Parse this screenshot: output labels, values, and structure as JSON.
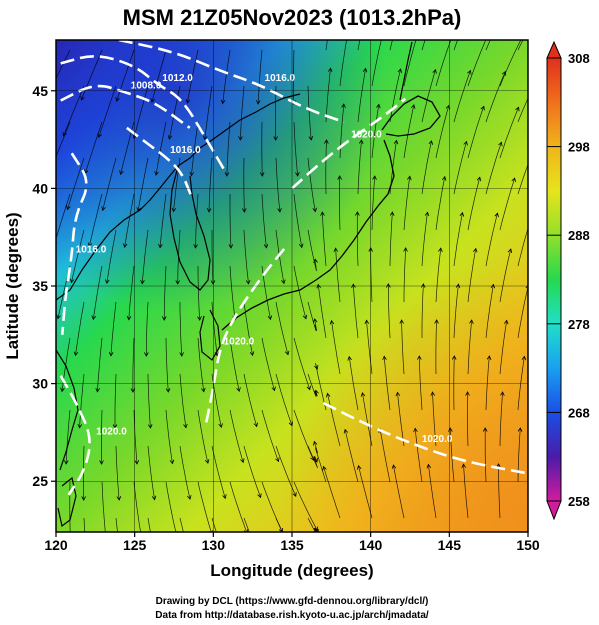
{
  "figure": {
    "title": "MSM 21Z05Nov2023 (1013.2hPa)",
    "credits": [
      "Drawing by DCL (https://www.gfd-dennou.org/library/dcl/)",
      "Data from http://database.rish.kyoto-u.ac.jp/arch/jmadata/"
    ]
  },
  "chart_data": {
    "type": "heatmap",
    "title": "MSM 21Z05Nov2023 (1013.2hPa)",
    "xlabel": "Longitude (degrees)",
    "ylabel": "Latitude  (degrees)",
    "xlim": [
      120,
      150
    ],
    "ylim": [
      22.4,
      47.6
    ],
    "xticks": [
      120,
      125,
      130,
      135,
      140,
      145,
      150
    ],
    "yticks": [
      25,
      30,
      35,
      40,
      45
    ],
    "grid": true,
    "colorbar": {
      "range": [
        258,
        308
      ],
      "ticks": [
        258,
        268,
        278,
        288,
        298,
        308
      ],
      "colors": [
        "#d21c9e",
        "#4a1ca8",
        "#1a4fe6",
        "#1aa0f0",
        "#1fe0c8",
        "#27d84e",
        "#92e02a",
        "#e6e41c",
        "#f0b41c",
        "#f0701c",
        "#e0301c"
      ],
      "extend": "both"
    },
    "contour_labels": [
      "1008.0",
      "1012.0",
      "1016.0",
      "1020.0"
    ],
    "pressure_contours": [
      {
        "value": 1008.0,
        "points": [
          [
            120.3,
            44.5
          ],
          [
            122.5,
            45.4
          ],
          [
            124.5,
            44.9
          ],
          [
            126.3,
            44.4
          ],
          [
            128.5,
            43.1
          ]
        ]
      },
      {
        "value": 1012.0,
        "points": [
          [
            120.3,
            46.4
          ],
          [
            122.5,
            46.9
          ],
          [
            125.0,
            46.3
          ],
          [
            126.5,
            45.3
          ],
          [
            128.0,
            44.6
          ],
          [
            129.5,
            42.6
          ],
          [
            130.8,
            40.8
          ]
        ]
      },
      {
        "value": 1016.0,
        "points": [
          [
            124.0,
            47.6
          ],
          [
            127.5,
            47.0
          ],
          [
            130.5,
            46.0
          ],
          [
            133.0,
            45.3
          ],
          [
            135.8,
            44.1
          ],
          [
            138.3,
            43.4
          ]
        ]
      },
      {
        "value": 1016.0,
        "points": [
          [
            121.0,
            41.8
          ],
          [
            122.2,
            40.3
          ],
          [
            121.2,
            38.6
          ],
          [
            121.0,
            36.5
          ],
          [
            120.6,
            34.5
          ],
          [
            120.4,
            32.5
          ]
        ]
      },
      {
        "value": 1016.0,
        "points": [
          [
            124.5,
            43.1
          ],
          [
            125.8,
            42.3
          ],
          [
            127.0,
            41.6
          ],
          [
            128.0,
            40.8
          ],
          [
            128.6,
            39.6
          ]
        ]
      },
      {
        "value": 1020.0,
        "points": [
          [
            135.0,
            40.0
          ],
          [
            136.8,
            41.3
          ],
          [
            138.5,
            42.4
          ],
          [
            141.0,
            43.8
          ],
          [
            142.2,
            44.6
          ]
        ]
      },
      {
        "value": 1020.0,
        "points": [
          [
            134.5,
            36.9
          ],
          [
            133.0,
            35.4
          ],
          [
            131.3,
            33.4
          ],
          [
            130.4,
            31.8
          ],
          [
            130.0,
            29.8
          ],
          [
            129.5,
            27.8
          ]
        ]
      },
      {
        "value": 1020.0,
        "points": [
          [
            120.3,
            30.4
          ],
          [
            121.3,
            29.0
          ],
          [
            122.3,
            27.2
          ],
          [
            121.8,
            25.5
          ],
          [
            120.8,
            24.3
          ]
        ]
      },
      {
        "value": 1020.0,
        "points": [
          [
            137.0,
            29.0
          ],
          [
            140.0,
            27.8
          ],
          [
            143.0,
            26.8
          ],
          [
            146.0,
            26.0
          ],
          [
            150.0,
            25.4
          ]
        ]
      }
    ]
  }
}
